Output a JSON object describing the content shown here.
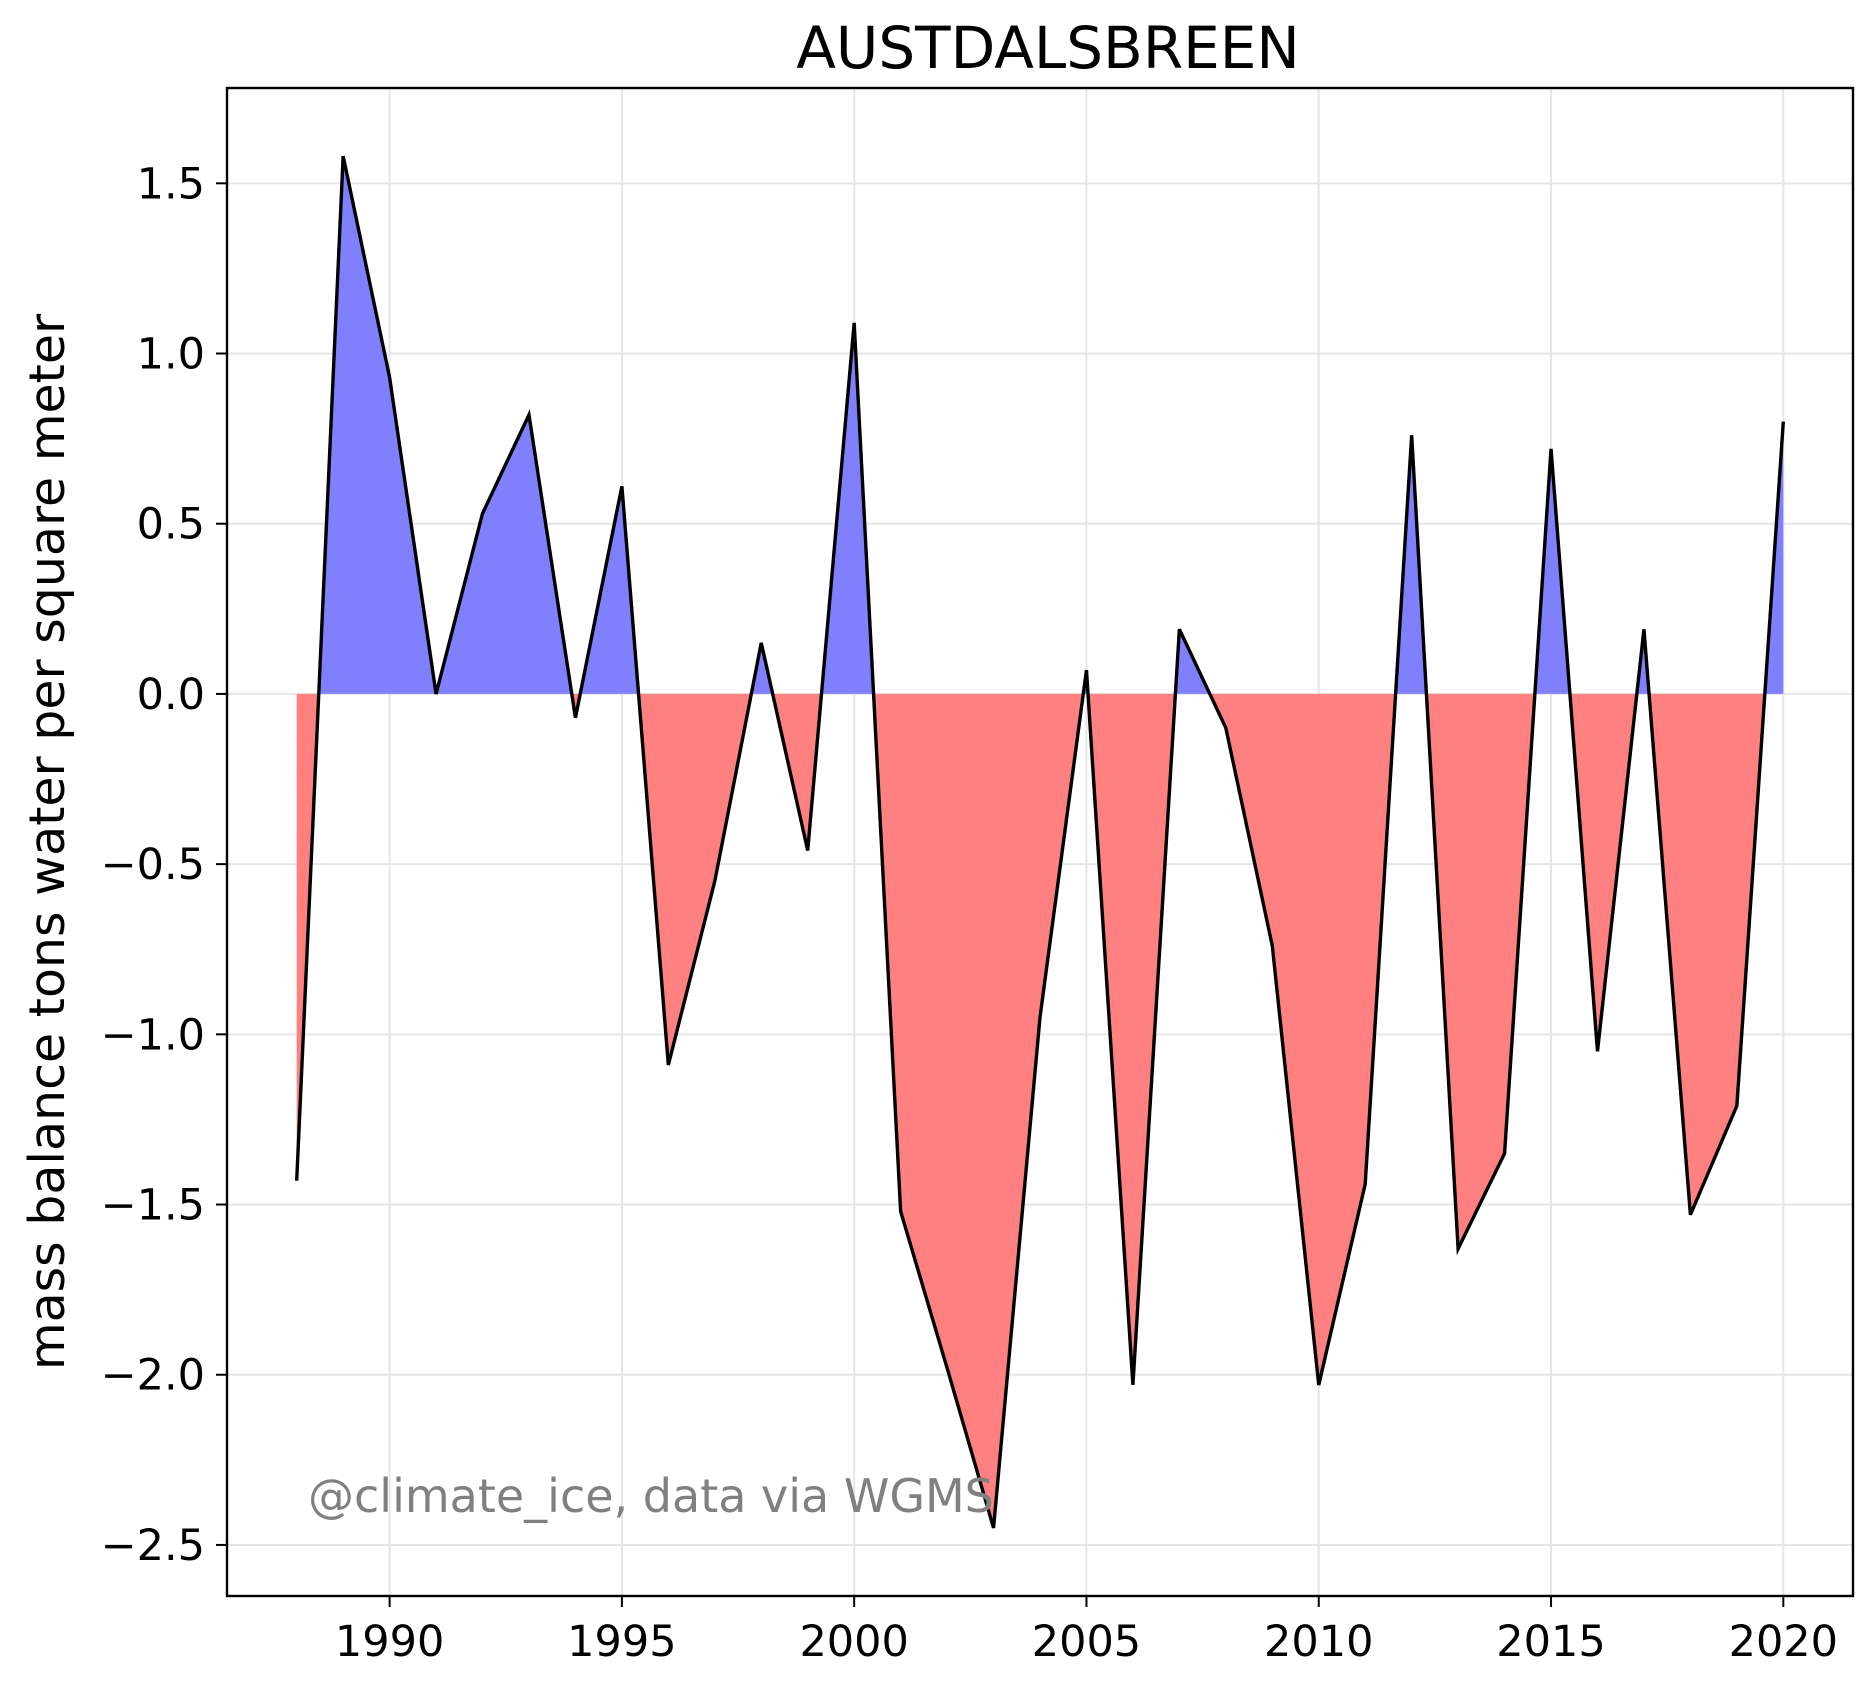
{
  "chart_data": {
    "type": "area",
    "title": "AUSTDALSBREEN",
    "xlabel": "",
    "ylabel": "mass balance tons water per square meter",
    "x": [
      1988,
      1989,
      1990,
      1991,
      1992,
      1993,
      1994,
      1995,
      1996,
      1997,
      1998,
      1999,
      2000,
      2001,
      2002,
      2003,
      2004,
      2005,
      2006,
      2007,
      2008,
      2009,
      2010,
      2011,
      2012,
      2013,
      2014,
      2015,
      2016,
      2017,
      2018,
      2019,
      2020
    ],
    "series": [
      {
        "values": [
          -1.43,
          1.58,
          0.93,
          0.0,
          0.53,
          0.82,
          -0.07,
          0.61,
          -1.09,
          -0.55,
          0.15,
          -0.46,
          1.09,
          -1.52,
          -1.98,
          -2.45,
          -0.95,
          0.07,
          -2.03,
          0.19,
          -0.1,
          -0.74,
          -2.03,
          -1.44,
          0.76,
          -1.63,
          -1.35,
          0.72,
          -1.05,
          0.19,
          -1.53,
          -1.21,
          0.8
        ]
      }
    ],
    "xlim": [
      1986.5,
      2021.5
    ],
    "ylim": [
      -2.65,
      1.78
    ],
    "xticks": [
      "1990",
      "1995",
      "2000",
      "2005",
      "2010",
      "2015",
      "2020"
    ],
    "yticks": [
      "1.5",
      "1.0",
      "0.5",
      "0.0",
      "−0.5",
      "−1.0",
      "−1.5",
      "−2.0",
      "−2.5"
    ],
    "grid": true,
    "colors": {
      "positive_fill": "#8080ff",
      "negative_fill": "#ff8080",
      "line": "#000000",
      "grid": "#e6e6e6"
    },
    "annotation": "@climate_ice, data via WGMS"
  }
}
